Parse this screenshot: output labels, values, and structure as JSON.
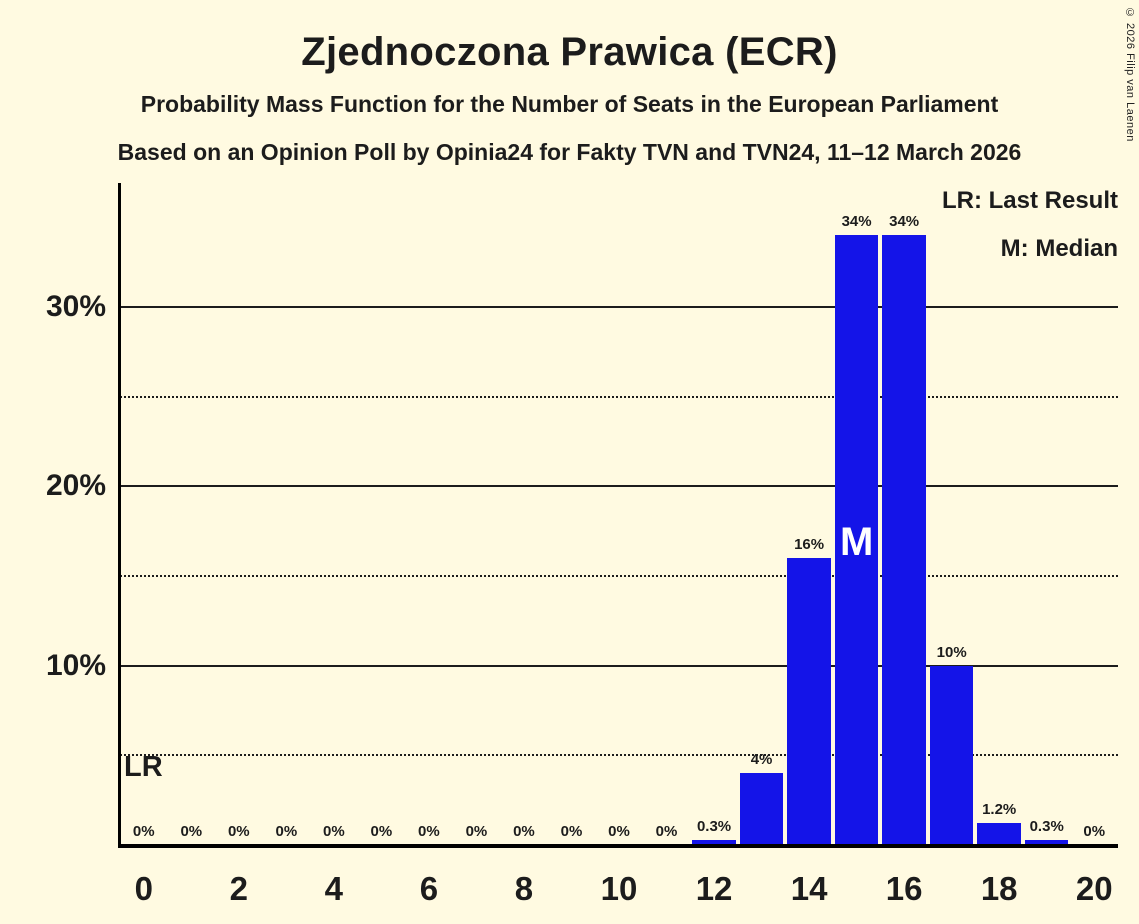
{
  "header": {
    "title": "Zjednoczona Prawica (ECR)",
    "subtitle": "Probability Mass Function for the Number of Seats in the European Parliament",
    "subsubtitle": "Based on an Opinion Poll by Opinia24 for Fakty TVN and TVN24, 11–12 March 2026"
  },
  "legend": {
    "lr": "LR: Last Result",
    "m": "M: Median"
  },
  "annotations": {
    "lr_marker": "LR",
    "median_marker": "M"
  },
  "copyright": "© 2026 Filip van Laenen",
  "chart_data": {
    "type": "bar",
    "title": "Zjednoczona Prawica (ECR)",
    "xlabel": "",
    "ylabel": "",
    "x": [
      0,
      1,
      2,
      3,
      4,
      5,
      6,
      7,
      8,
      9,
      10,
      11,
      12,
      13,
      14,
      15,
      16,
      17,
      18,
      19,
      20
    ],
    "values": [
      0,
      0,
      0,
      0,
      0,
      0,
      0,
      0,
      0,
      0,
      0,
      0,
      0.3,
      4,
      16,
      34,
      34,
      10,
      1.2,
      0.3,
      0
    ],
    "value_labels": [
      "0%",
      "0%",
      "0%",
      "0%",
      "0%",
      "0%",
      "0%",
      "0%",
      "0%",
      "0%",
      "0%",
      "0%",
      "0.3%",
      "4%",
      "16%",
      "34%",
      "34%",
      "10%",
      "1.2%",
      "0.3%",
      "0%"
    ],
    "median_seat": 15,
    "x_tick_seats": [
      0,
      2,
      4,
      6,
      8,
      10,
      12,
      14,
      16,
      18,
      20
    ],
    "x_tick_labels": [
      "0",
      "2",
      "4",
      "6",
      "8",
      "10",
      "12",
      "14",
      "16",
      "18",
      "20"
    ],
    "y_axis": {
      "ticks": [
        {
          "value": 10,
          "label": "10%"
        },
        {
          "value": 20,
          "label": "20%"
        },
        {
          "value": 30,
          "label": "30%"
        }
      ],
      "solid_gridlines": [
        10,
        20,
        30
      ],
      "dotted_gridlines": [
        5,
        15,
        25
      ]
    },
    "ylim": [
      0,
      37
    ],
    "grid": "horizontal",
    "legend_position": "top-right",
    "bar_color": "#1414E8",
    "background_color": "#FFFAE1",
    "text_color": "#1c1c1c",
    "median_marker_color": "#FFFFFF",
    "axis_color": "#000000"
  }
}
